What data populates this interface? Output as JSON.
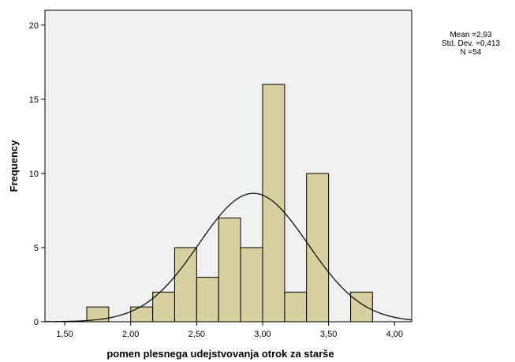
{
  "chart_data": {
    "type": "histogram",
    "xlabel": "pomen plesnega udejstvovanja otrok za starše",
    "ylabel": "Frequency",
    "xlim": [
      1.35,
      4.13
    ],
    "ylim": [
      0,
      21
    ],
    "x_ticks": [
      "1,50",
      "2,00",
      "2,50",
      "3,00",
      "3,50",
      "4,00"
    ],
    "x_tick_values": [
      1.5,
      2.0,
      2.5,
      3.0,
      3.5,
      4.0
    ],
    "y_ticks": [
      "0",
      "5",
      "10",
      "15",
      "20"
    ],
    "y_tick_values": [
      0,
      5,
      10,
      15,
      20
    ],
    "bins": [
      {
        "from": 1.667,
        "to": 1.833,
        "count": 1
      },
      {
        "from": 1.833,
        "to": 2.0,
        "count": 0
      },
      {
        "from": 2.0,
        "to": 2.167,
        "count": 1
      },
      {
        "from": 2.167,
        "to": 2.333,
        "count": 2
      },
      {
        "from": 2.333,
        "to": 2.5,
        "count": 5
      },
      {
        "from": 2.5,
        "to": 2.667,
        "count": 3
      },
      {
        "from": 2.667,
        "to": 2.833,
        "count": 7
      },
      {
        "from": 2.833,
        "to": 3.0,
        "count": 5
      },
      {
        "from": 3.0,
        "to": 3.167,
        "count": 16
      },
      {
        "from": 3.167,
        "to": 3.333,
        "count": 2
      },
      {
        "from": 3.333,
        "to": 3.5,
        "count": 10
      },
      {
        "from": 3.5,
        "to": 3.667,
        "count": 0
      },
      {
        "from": 3.667,
        "to": 3.833,
        "count": 2
      }
    ],
    "normal_curve": {
      "mean": 2.93,
      "sd": 0.413,
      "n": 54
    },
    "stats": {
      "mean_label": "Mean =2,93",
      "sd_label": "Std. Dev. =0,413",
      "n_label": "N =54"
    },
    "colors": {
      "bar_fill": "#d7d0a0",
      "bar_stroke": "#000000",
      "plot_bg": "#f0f0f0",
      "curve": "#000000"
    },
    "grid": false,
    "legend": "top-right"
  }
}
